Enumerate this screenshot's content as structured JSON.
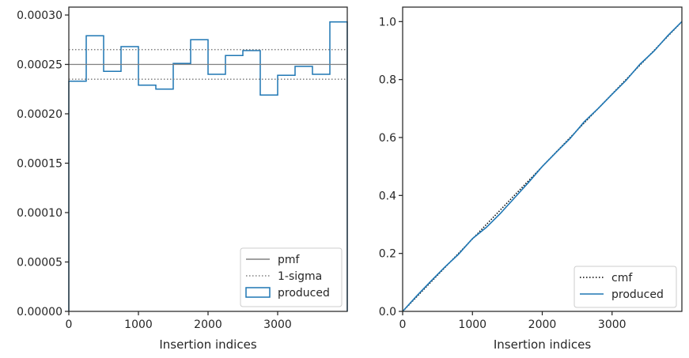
{
  "chart_data": [
    {
      "type": "step",
      "xlabel": "Insertion indices",
      "ylabel": "",
      "xlim": [
        0,
        4000
      ],
      "ylim": [
        0,
        0.000308
      ],
      "xticks": [
        0,
        1000,
        2000,
        3000
      ],
      "xtick_labels": [
        "0",
        "1000",
        "2000",
        "3000"
      ],
      "yticks": [
        0,
        5e-05,
        0.0001,
        0.00015,
        0.0002,
        0.00025,
        0.0003
      ],
      "ytick_labels": [
        "0.00000",
        "0.00005",
        "0.00010",
        "0.00015",
        "0.00020",
        "0.00025",
        "0.00030"
      ],
      "bin_edges": [
        0,
        250,
        500,
        750,
        1000,
        1250,
        1500,
        1750,
        2000,
        2250,
        2500,
        2750,
        3000,
        3250,
        3500,
        3750,
        4000
      ],
      "series": [
        {
          "name": "produced",
          "kind": "hist-step",
          "color": "#1f77b4",
          "values": [
            0.000233,
            0.000279,
            0.000243,
            0.000268,
            0.000229,
            0.000225,
            0.000251,
            0.000275,
            0.00024,
            0.000259,
            0.000264,
            0.000219,
            0.000239,
            0.000248,
            0.00024,
            0.000293
          ]
        },
        {
          "name": "pmf",
          "kind": "hline",
          "color": "#808080",
          "y": 0.00025
        },
        {
          "name": "1-sigma",
          "kind": "hline-dotted",
          "color": "#808080",
          "y": [
            0.000265,
            0.000235
          ]
        }
      ],
      "legend": {
        "position": "lower-right",
        "entries": [
          "pmf",
          "1-sigma",
          "produced"
        ]
      },
      "grid": false
    },
    {
      "type": "line",
      "xlabel": "Insertion indices",
      "ylabel": "",
      "xlim": [
        0,
        4000
      ],
      "ylim": [
        0,
        1.05
      ],
      "xticks": [
        0,
        1000,
        2000,
        3000
      ],
      "xtick_labels": [
        "0",
        "1000",
        "2000",
        "3000"
      ],
      "yticks": [
        0,
        0.2,
        0.4,
        0.6,
        0.8,
        1.0
      ],
      "ytick_labels": [
        "0.0",
        "0.2",
        "0.4",
        "0.6",
        "0.8",
        "1.0"
      ],
      "series": [
        {
          "name": "cmf",
          "kind": "line-dotted",
          "color": "#000000",
          "x": [
            0,
            4000
          ],
          "y": [
            0,
            1.0
          ]
        },
        {
          "name": "produced",
          "kind": "line",
          "color": "#1f77b4",
          "x": [
            0,
            200,
            400,
            600,
            800,
            1000,
            1200,
            1400,
            1600,
            1800,
            2000,
            2200,
            2400,
            2600,
            2800,
            3000,
            3200,
            3400,
            3600,
            3800,
            4000
          ],
          "y": [
            0,
            0.053,
            0.103,
            0.152,
            0.197,
            0.251,
            0.29,
            0.338,
            0.391,
            0.444,
            0.5,
            0.549,
            0.597,
            0.654,
            0.7,
            0.749,
            0.797,
            0.853,
            0.898,
            0.952,
            1.0
          ]
        }
      ],
      "legend": {
        "position": "lower-right",
        "entries": [
          "cmf",
          "produced"
        ]
      },
      "grid": false
    }
  ]
}
